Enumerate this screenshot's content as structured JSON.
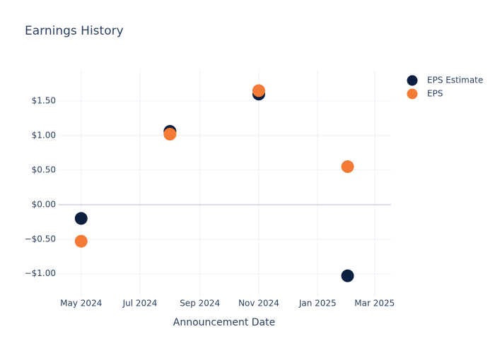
{
  "chart_data": {
    "type": "scatter",
    "title": "Earnings History",
    "xlabel": "Announcement Date",
    "x": [
      "2024-05",
      "2024-08",
      "2024-11",
      "2025-02"
    ],
    "series": [
      {
        "name": "EPS Estimate",
        "color": "#0b1f41",
        "values": [
          -0.2,
          1.06,
          1.6,
          -1.03
        ]
      },
      {
        "name": "EPS",
        "color": "#f37b36",
        "values": [
          -0.53,
          1.02,
          1.65,
          0.55
        ]
      }
    ],
    "xlim": [
      "2024-04-07",
      "2025-03-18"
    ],
    "xticks": [
      {
        "value": "2024-05",
        "label": "May 2024"
      },
      {
        "value": "2024-07",
        "label": "Jul 2024"
      },
      {
        "value": "2024-09",
        "label": "Sep 2024"
      },
      {
        "value": "2024-11",
        "label": "Nov 2024"
      },
      {
        "value": "2025-01",
        "label": "Jan 2025"
      },
      {
        "value": "2025-03",
        "label": "Mar 2025"
      }
    ],
    "ylim": [
      -1.33,
      1.94
    ],
    "yticks": [
      {
        "value": -1,
        "label": "−$1.00"
      },
      {
        "value": -0.5,
        "label": "−$0.50"
      },
      {
        "value": 0,
        "label": "$0.00"
      },
      {
        "value": 0.5,
        "label": "$0.50"
      },
      {
        "value": 1,
        "label": "$1.00"
      },
      {
        "value": 1.5,
        "label": "$1.50"
      }
    ],
    "grid": true,
    "legend": "top-right"
  }
}
